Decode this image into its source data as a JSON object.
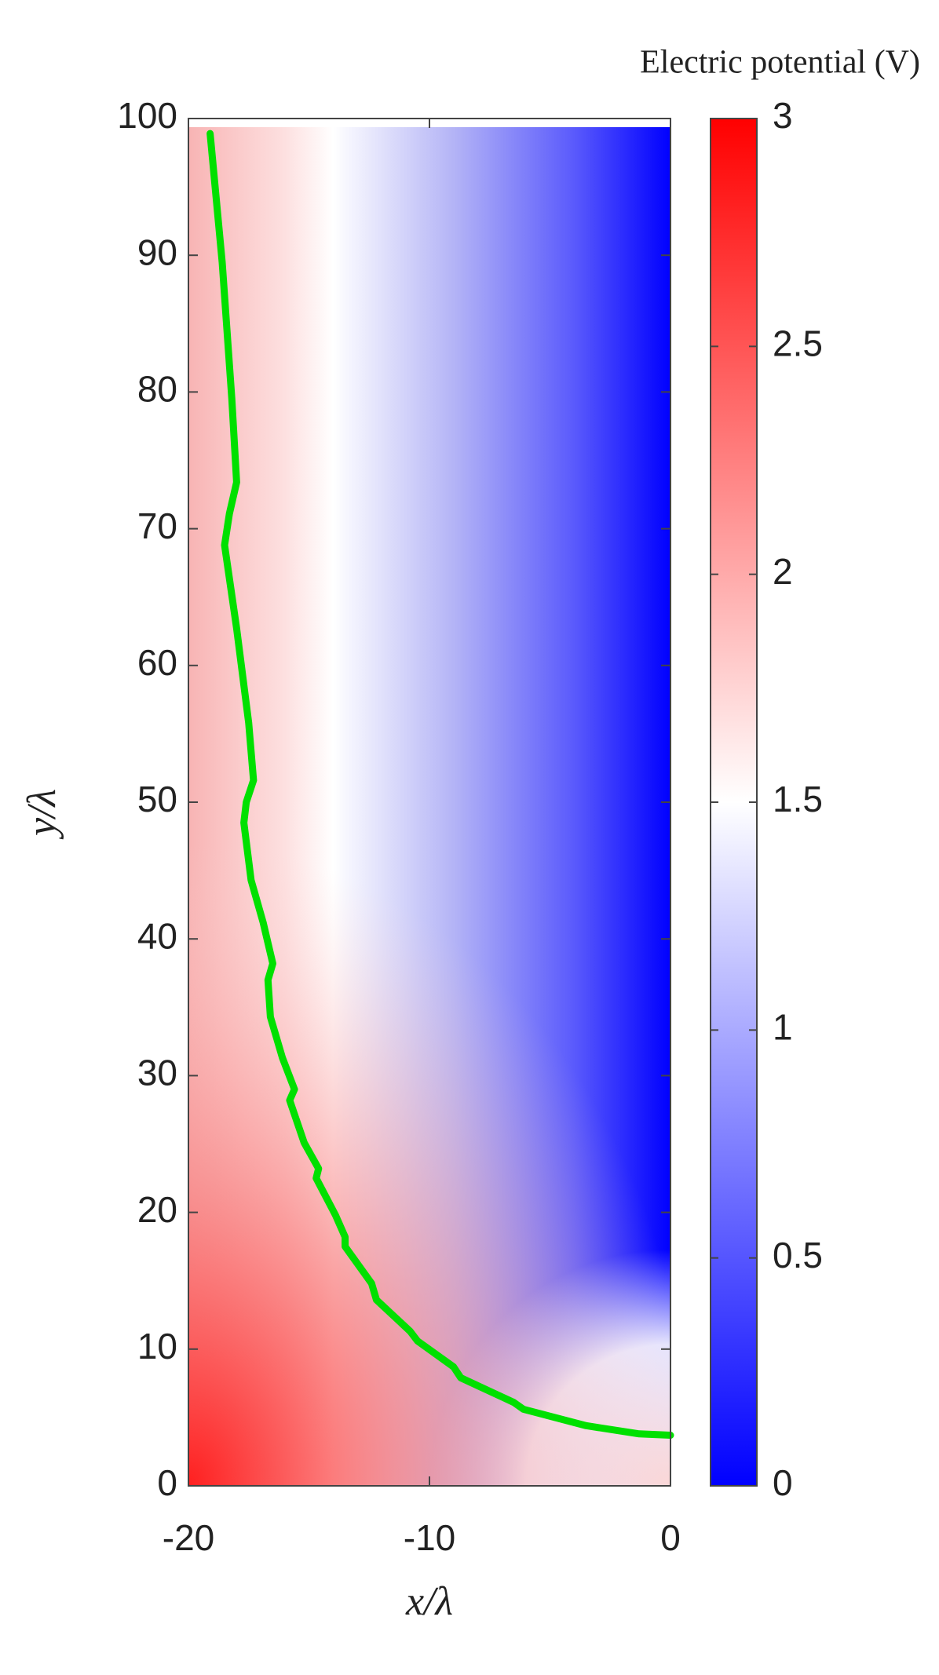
{
  "chart_data": {
    "type": "contour",
    "xlabel": "x/λ",
    "ylabel": "y/λ",
    "xlim": [
      -20,
      0
    ],
    "ylim": [
      0,
      100
    ],
    "xticks": [
      -20,
      -10,
      0
    ],
    "yticks": [
      0,
      10,
      20,
      30,
      40,
      50,
      60,
      70,
      80,
      90,
      100
    ],
    "series": [
      {
        "color": "#00e000",
        "x": [
          -19.1,
          -18.6,
          -18.2,
          -18.0,
          -18.3,
          -18.5,
          -18.0,
          -17.5,
          -17.3,
          -17.6,
          -17.7,
          -17.4,
          -16.9,
          -16.5,
          -16.7,
          -16.6,
          -16.1,
          -15.6,
          -15.8,
          -15.2,
          -14.6,
          -14.7,
          -13.9,
          -13.5,
          -13.5,
          -12.4,
          -12.2,
          -10.8,
          -10.5,
          -9.0,
          -8.7,
          -6.5,
          -6.1,
          -3.5,
          -1.3,
          0
        ],
        "values": [
          98.9,
          89.5,
          79.5,
          73.4,
          71.1,
          68.8,
          62.7,
          55.8,
          51.6,
          50.0,
          48.5,
          44.3,
          41.2,
          38.2,
          37.0,
          34.3,
          31.3,
          29.0,
          28.2,
          25.1,
          23.2,
          22.5,
          19.8,
          18.2,
          17.5,
          14.8,
          13.6,
          11.3,
          10.6,
          8.7,
          7.9,
          6.1,
          5.6,
          4.4,
          3.8,
          3.7
        ]
      }
    ],
    "colorbar": {
      "title": "Electric potential (V)",
      "lim": [
        0,
        3
      ],
      "ticks": [
        0,
        0.5,
        1,
        1.5,
        2,
        2.5,
        3
      ],
      "colors": [
        "#0000ff",
        "#ffffff",
        "#ff0000"
      ]
    }
  }
}
